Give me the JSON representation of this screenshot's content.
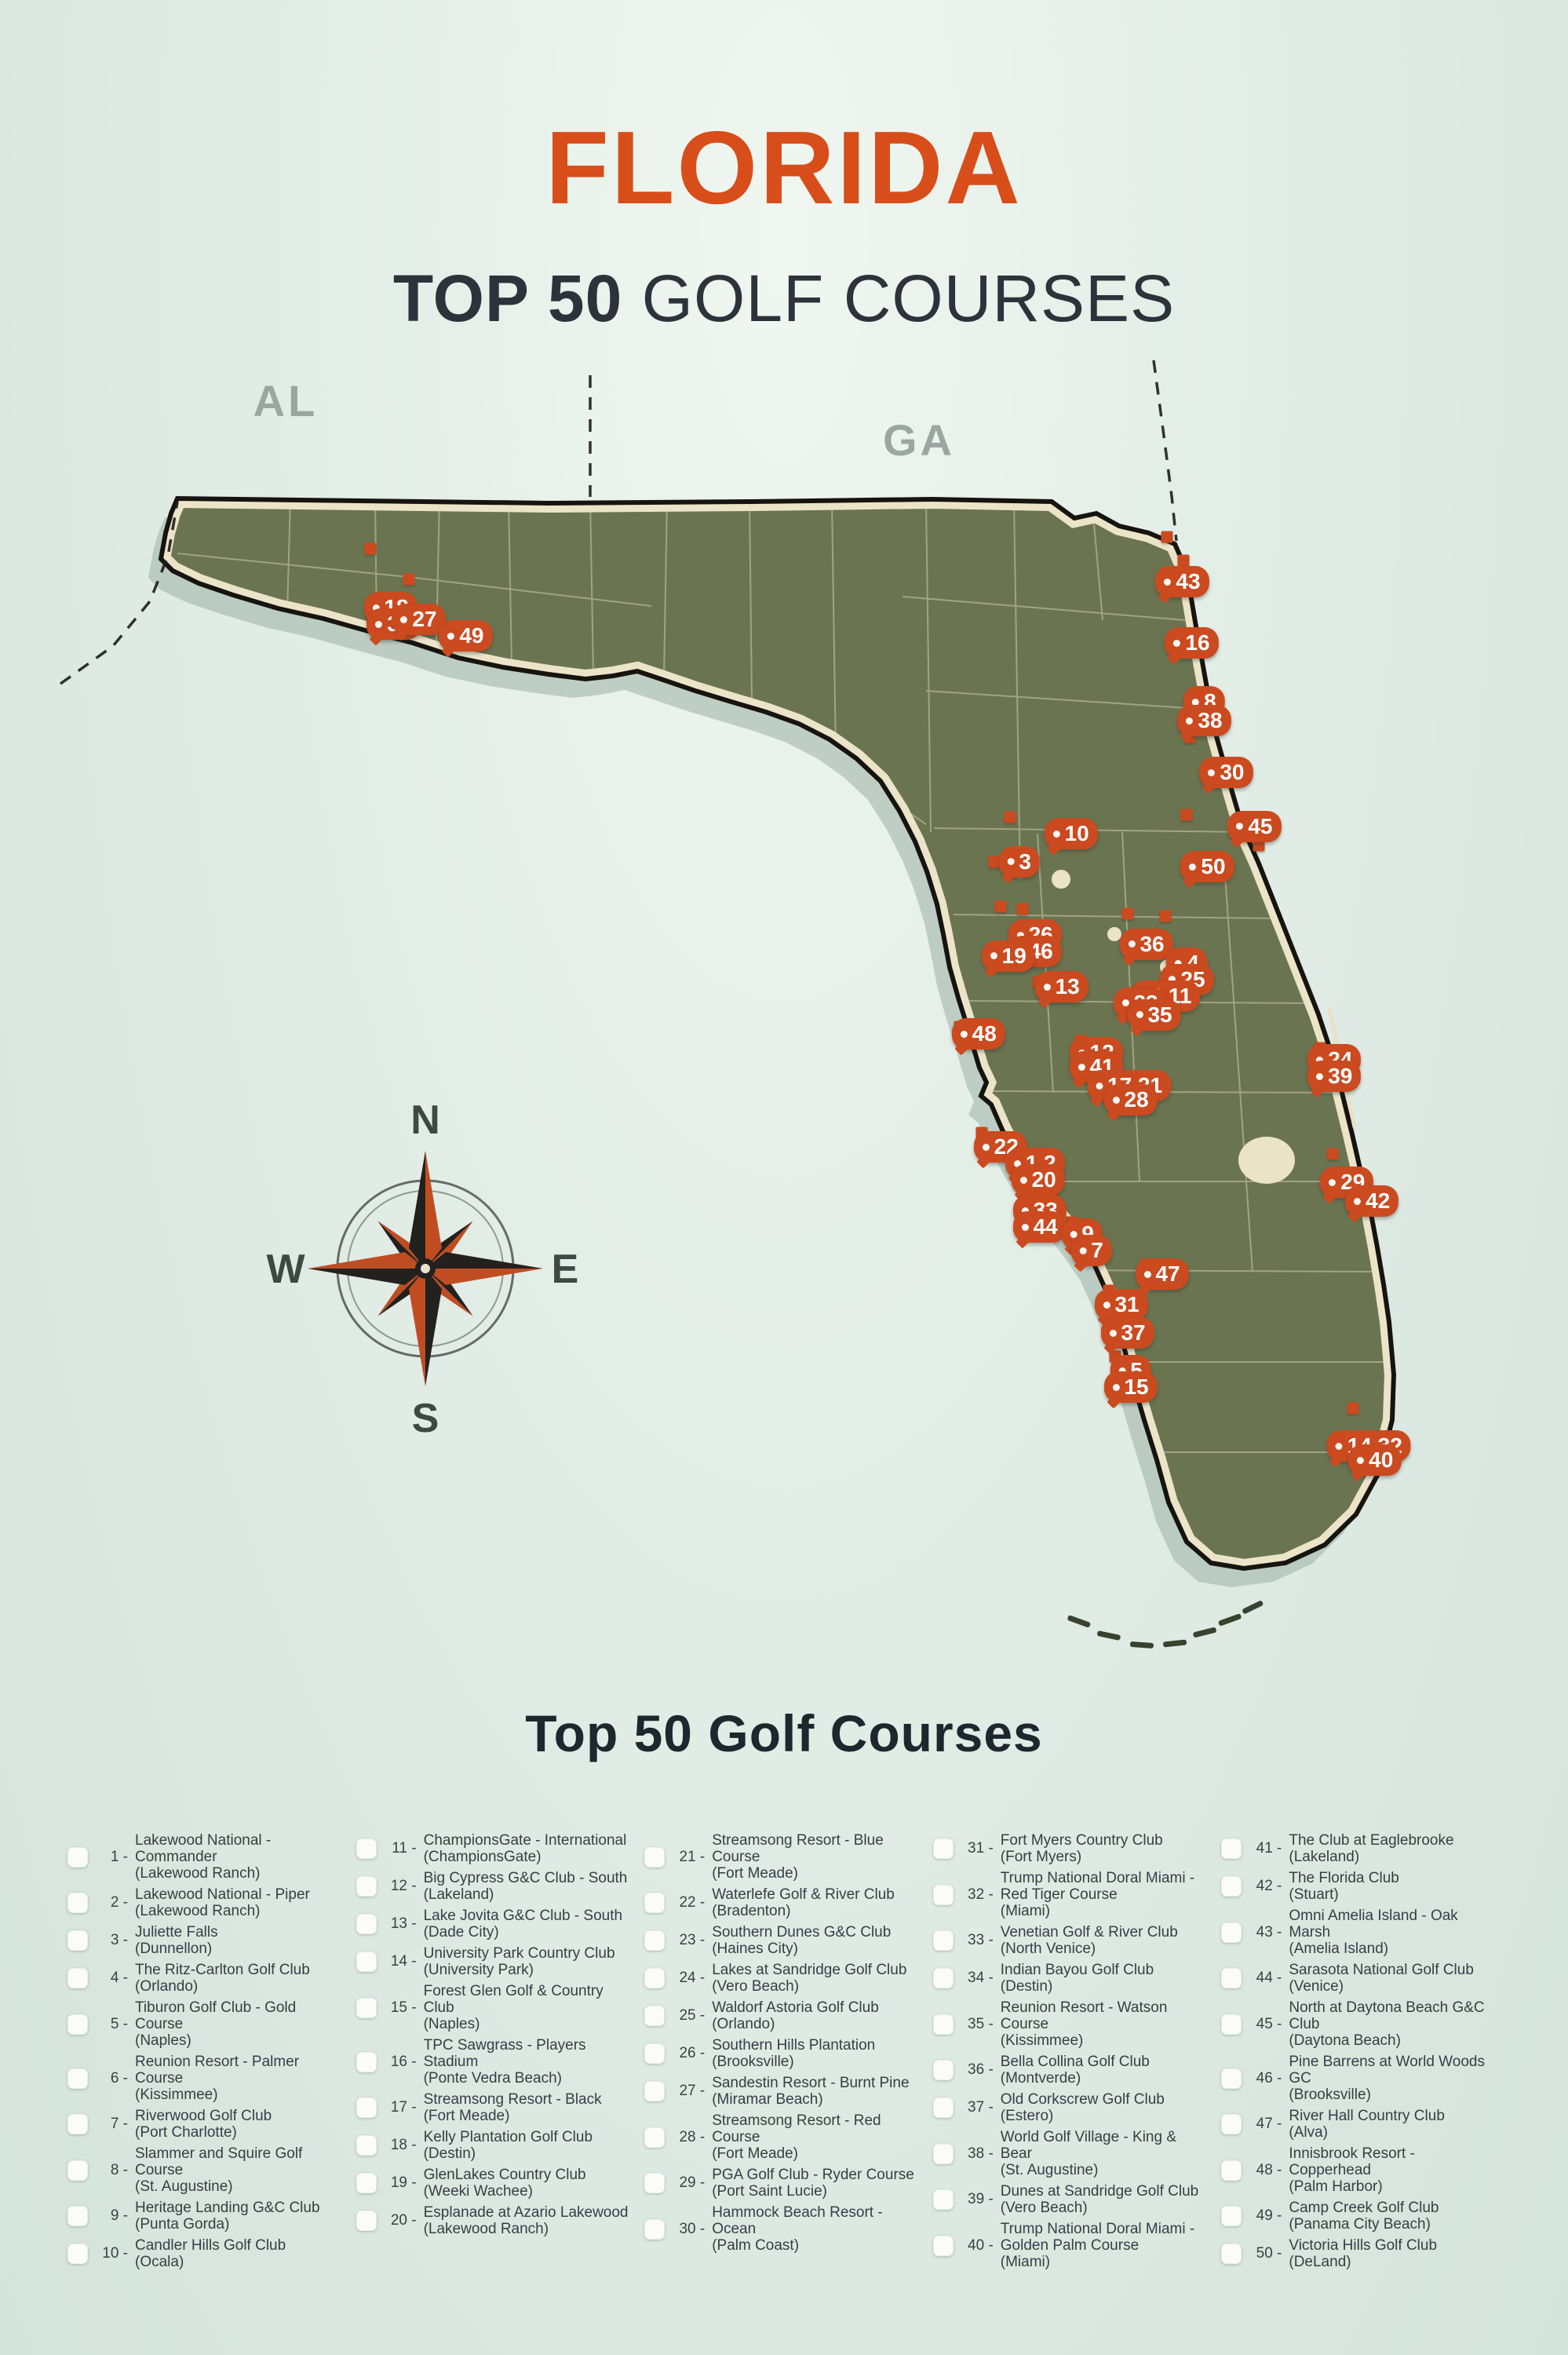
{
  "title": "FLORIDA",
  "subtitle": {
    "bold": "TOP 50",
    "regular": "GOLF COURSES"
  },
  "colors": {
    "accent": "#cb4a1f",
    "title_orange": "#d84e1a",
    "land_olive": "#6b7450",
    "outline_black": "#17140f",
    "beach_cream": "#ece4c9",
    "background_mint": "#dfeae3",
    "shadow_gray": "#a2b5ac"
  },
  "map": {
    "labels": {
      "al": "AL",
      "ga": "GA"
    },
    "compass": {
      "n": "N",
      "e": "E",
      "s": "S",
      "w": "W"
    },
    "markers": [
      {
        "label": "18",
        "x": 24.9,
        "y": 25.8
      },
      {
        "label": "34",
        "x": 25.1,
        "y": 26.5
      },
      {
        "label": "27",
        "x": 26.7,
        "y": 26.3
      },
      {
        "label": "49",
        "x": 29.7,
        "y": 27.0
      },
      {
        "label": "43",
        "x": 75.4,
        "y": 24.7
      },
      {
        "label": "16",
        "x": 76.0,
        "y": 27.3
      },
      {
        "label": "8",
        "x": 76.8,
        "y": 29.8
      },
      {
        "label": "38",
        "x": 76.8,
        "y": 30.6
      },
      {
        "label": "30",
        "x": 78.2,
        "y": 32.8
      },
      {
        "label": "45",
        "x": 80.0,
        "y": 35.1
      },
      {
        "label": "50",
        "x": 77.0,
        "y": 36.8
      },
      {
        "label": "10",
        "x": 68.3,
        "y": 35.4
      },
      {
        "label": "3",
        "x": 65.0,
        "y": 36.6
      },
      {
        "label": "26",
        "x": 66.0,
        "y": 39.7
      },
      {
        "label": "46",
        "x": 66.0,
        "y": 40.4
      },
      {
        "label": "19",
        "x": 64.3,
        "y": 40.6
      },
      {
        "label": "36",
        "x": 73.1,
        "y": 40.1
      },
      {
        "label": "4",
        "x": 75.7,
        "y": 40.9
      },
      {
        "label": "25",
        "x": 75.7,
        "y": 41.6
      },
      {
        "label": "13",
        "x": 67.7,
        "y": 41.9
      },
      {
        "label": "6,11",
        "x": 74.3,
        "y": 42.3
      },
      {
        "label": "23",
        "x": 72.7,
        "y": 42.6
      },
      {
        "label": "35",
        "x": 73.6,
        "y": 43.1
      },
      {
        "label": "48",
        "x": 62.4,
        "y": 43.9
      },
      {
        "label": "12",
        "x": 69.9,
        "y": 44.7
      },
      {
        "label": "41",
        "x": 69.9,
        "y": 45.3
      },
      {
        "label": "17,21",
        "x": 72.0,
        "y": 46.1
      },
      {
        "label": "28",
        "x": 72.1,
        "y": 46.7
      },
      {
        "label": "24",
        "x": 85.1,
        "y": 45.0
      },
      {
        "label": "39",
        "x": 85.1,
        "y": 45.7
      },
      {
        "label": "22",
        "x": 63.8,
        "y": 48.7
      },
      {
        "label": "1,2",
        "x": 66.0,
        "y": 49.4
      },
      {
        "label": "20",
        "x": 66.2,
        "y": 50.1
      },
      {
        "label": "29",
        "x": 85.9,
        "y": 50.2
      },
      {
        "label": "42",
        "x": 87.5,
        "y": 51.0
      },
      {
        "label": "33",
        "x": 66.3,
        "y": 51.4
      },
      {
        "label": "44",
        "x": 66.3,
        "y": 52.1
      },
      {
        "label": "9",
        "x": 69.0,
        "y": 52.4
      },
      {
        "label": "7",
        "x": 69.6,
        "y": 53.1
      },
      {
        "label": "47",
        "x": 74.1,
        "y": 54.1
      },
      {
        "label": "31",
        "x": 71.5,
        "y": 55.4
      },
      {
        "label": "37",
        "x": 71.9,
        "y": 56.6
      },
      {
        "label": "5",
        "x": 72.1,
        "y": 58.2
      },
      {
        "label": "15",
        "x": 72.1,
        "y": 58.9
      },
      {
        "label": "14,32",
        "x": 87.3,
        "y": 61.4
      },
      {
        "label": "40",
        "x": 87.7,
        "y": 62.0
      }
    ],
    "pins": [
      [
        23.6,
        23.3
      ],
      [
        26.1,
        24.6
      ],
      [
        74.4,
        22.8
      ],
      [
        75.5,
        23.8
      ],
      [
        75.9,
        31.3
      ],
      [
        75.7,
        34.6
      ],
      [
        80.3,
        35.9
      ],
      [
        64.4,
        34.7
      ],
      [
        63.4,
        36.6
      ],
      [
        63.8,
        38.5
      ],
      [
        65.2,
        38.6
      ],
      [
        71.9,
        38.8
      ],
      [
        74.3,
        38.9
      ],
      [
        66.2,
        41.7
      ],
      [
        61.2,
        43.6
      ],
      [
        68.9,
        44.2
      ],
      [
        71.2,
        45.3
      ],
      [
        84.2,
        44.5
      ],
      [
        62.6,
        48.1
      ],
      [
        65.0,
        48.7
      ],
      [
        67.1,
        50.9
      ],
      [
        68.3,
        51.9
      ],
      [
        68.9,
        52.6
      ],
      [
        73.1,
        53.7
      ],
      [
        70.7,
        54.8
      ],
      [
        71.1,
        56.0
      ],
      [
        71.1,
        57.6
      ],
      [
        85.0,
        49.0
      ],
      [
        86.8,
        50.3
      ],
      [
        86.3,
        59.8
      ]
    ]
  },
  "legend": {
    "title": "Top 50 Golf Courses",
    "items": [
      {
        "num": 1,
        "name": "Lakewood National - Commander",
        "city": "(Lakewood Ranch)"
      },
      {
        "num": 2,
        "name": "Lakewood National - Piper",
        "city": "(Lakewood Ranch)"
      },
      {
        "num": 3,
        "name": "Juliette Falls",
        "city": "(Dunnellon)"
      },
      {
        "num": 4,
        "name": "The Ritz-Carlton Golf Club",
        "city": "(Orlando)"
      },
      {
        "num": 5,
        "name": "Tiburon Golf Club - Gold Course",
        "city": "(Naples)"
      },
      {
        "num": 6,
        "name": "Reunion Resort - Palmer Course",
        "city": "(Kissimmee)"
      },
      {
        "num": 7,
        "name": "Riverwood Golf Club",
        "city": "(Port Charlotte)"
      },
      {
        "num": 8,
        "name": "Slammer and Squire Golf Course",
        "city": "(St. Augustine)"
      },
      {
        "num": 9,
        "name": "Heritage Landing G&C Club",
        "city": "(Punta Gorda)"
      },
      {
        "num": 10,
        "name": "Candler Hills Golf Club",
        "city": "(Ocala)"
      },
      {
        "num": 11,
        "name": "ChampionsGate - International",
        "city": "(ChampionsGate)"
      },
      {
        "num": 12,
        "name": "Big Cypress G&C Club - South",
        "city": "(Lakeland)"
      },
      {
        "num": 13,
        "name": "Lake Jovita G&C Club - South",
        "city": "(Dade City)"
      },
      {
        "num": 14,
        "name": "University Park Country Club",
        "city": "(University Park)"
      },
      {
        "num": 15,
        "name": "Forest Glen Golf & Country Club",
        "city": "(Naples)"
      },
      {
        "num": 16,
        "name": "TPC Sawgrass - Players Stadium",
        "city": "(Ponte Vedra Beach)"
      },
      {
        "num": 17,
        "name": "Streamsong Resort - Black",
        "city": "(Fort Meade)"
      },
      {
        "num": 18,
        "name": "Kelly Plantation Golf Club",
        "city": "(Destin)"
      },
      {
        "num": 19,
        "name": "GlenLakes Country Club",
        "city": "(Weeki Wachee)"
      },
      {
        "num": 20,
        "name": "Esplanade at Azario Lakewood",
        "city": "(Lakewood Ranch)"
      },
      {
        "num": 21,
        "name": "Streamsong Resort - Blue Course",
        "city": "(Fort Meade)"
      },
      {
        "num": 22,
        "name": "Waterlefe Golf & River Club",
        "city": "(Bradenton)"
      },
      {
        "num": 23,
        "name": "Southern Dunes G&C Club",
        "city": "(Haines City)"
      },
      {
        "num": 24,
        "name": "Lakes at Sandridge Golf Club",
        "city": "(Vero Beach)"
      },
      {
        "num": 25,
        "name": "Waldorf Astoria Golf Club",
        "city": "(Orlando)"
      },
      {
        "num": 26,
        "name": "Southern Hills Plantation",
        "city": "(Brooksville)"
      },
      {
        "num": 27,
        "name": "Sandestin Resort - Burnt Pine",
        "city": "(Miramar Beach)"
      },
      {
        "num": 28,
        "name": "Streamsong Resort - Red Course",
        "city": "(Fort Meade)"
      },
      {
        "num": 29,
        "name": "PGA Golf Club - Ryder Course",
        "city": "(Port Saint Lucie)"
      },
      {
        "num": 30,
        "name": "Hammock Beach Resort - Ocean",
        "city": "(Palm Coast)"
      },
      {
        "num": 31,
        "name": "Fort Myers Country Club",
        "city": "(Fort Myers)"
      },
      {
        "num": 32,
        "name": "Trump National Doral Miami - Red Tiger Course",
        "city": "(Miami)"
      },
      {
        "num": 33,
        "name": "Venetian Golf & River Club",
        "city": "(North Venice)"
      },
      {
        "num": 34,
        "name": "Indian Bayou Golf Club",
        "city": "(Destin)"
      },
      {
        "num": 35,
        "name": "Reunion Resort - Watson Course",
        "city": "(Kissimmee)"
      },
      {
        "num": 36,
        "name": "Bella Collina Golf Club",
        "city": "(Montverde)"
      },
      {
        "num": 37,
        "name": "Old Corkscrew Golf Club",
        "city": "(Estero)"
      },
      {
        "num": 38,
        "name": "World Golf Village - King & Bear",
        "city": "(St. Augustine)"
      },
      {
        "num": 39,
        "name": "Dunes at Sandridge Golf Club",
        "city": "(Vero Beach)"
      },
      {
        "num": 40,
        "name": "Trump National Doral Miami - Golden Palm Course",
        "city": "(Miami)"
      },
      {
        "num": 41,
        "name": "The Club at Eaglebrooke",
        "city": "(Lakeland)"
      },
      {
        "num": 42,
        "name": "The Florida Club",
        "city": "(Stuart)"
      },
      {
        "num": 43,
        "name": "Omni Amelia Island - Oak Marsh",
        "city": "(Amelia Island)"
      },
      {
        "num": 44,
        "name": "Sarasota National Golf Club",
        "city": "(Venice)"
      },
      {
        "num": 45,
        "name": "North at Daytona Beach G&C Club",
        "city": "(Daytona Beach)"
      },
      {
        "num": 46,
        "name": "Pine Barrens at World Woods GC",
        "city": "(Brooksville)"
      },
      {
        "num": 47,
        "name": "River Hall Country Club",
        "city": "(Alva)"
      },
      {
        "num": 48,
        "name": "Innisbrook Resort - Copperhead",
        "city": "(Palm Harbor)"
      },
      {
        "num": 49,
        "name": "Camp Creek Golf Club",
        "city": "(Panama City Beach)"
      },
      {
        "num": 50,
        "name": "Victoria Hills Golf Club",
        "city": "(DeLand)"
      }
    ]
  }
}
